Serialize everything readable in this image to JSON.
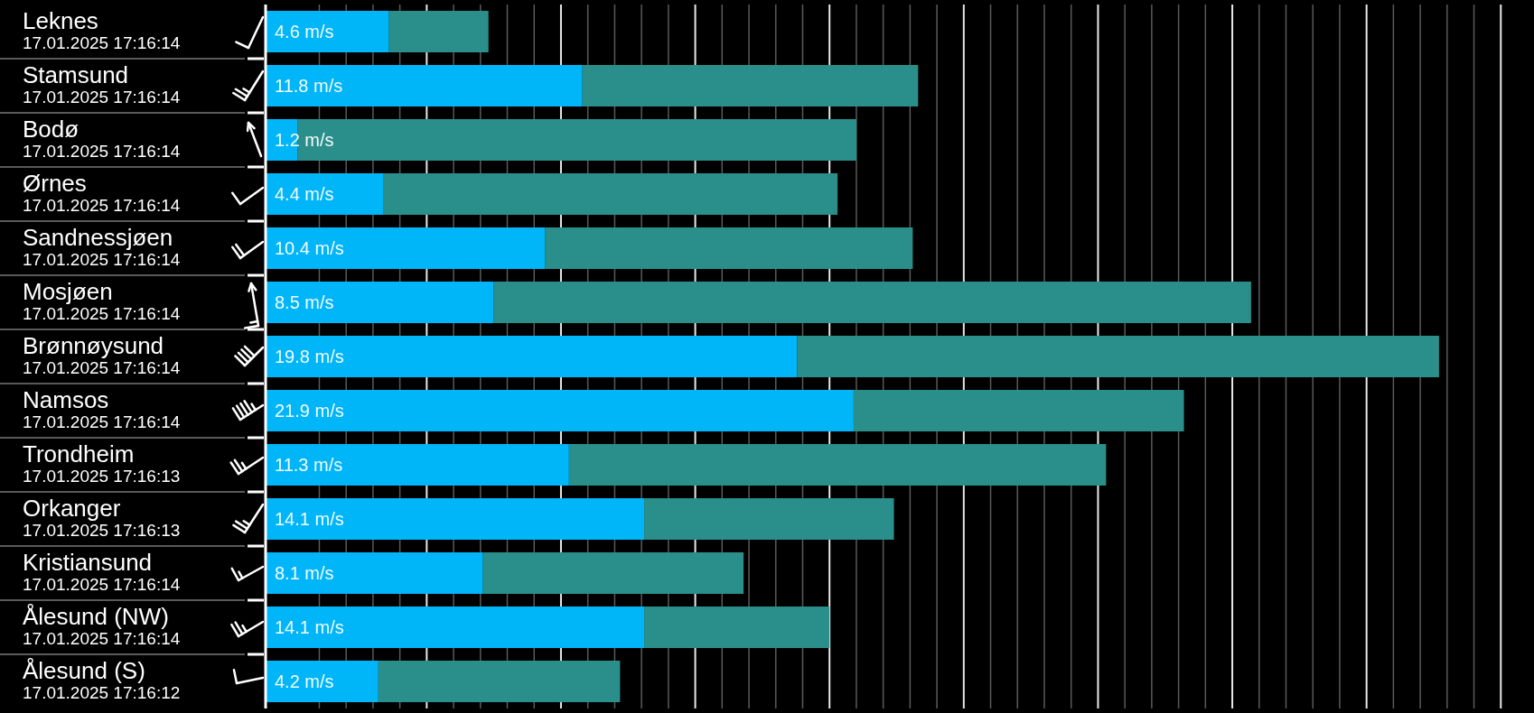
{
  "chart_data": {
    "type": "bar",
    "orientation": "horizontal",
    "stacked": true,
    "categories": [
      "Leknes\n17.01.2025 17:16:14",
      "Stamsund\n17.01.2025 17:16:14",
      "Bodø\n17.01.2025 17:16:14",
      "Ørnes\n17.01.2025 17:16:14",
      "Sandnessjøen\n17.01.2025 17:16:14",
      "Mosjøen\n17.01.2025 17:16:14",
      "Brønnøysund\n17.01.2025 17:16:14",
      "Namsos\n17.01.2025 17:16:14",
      "Trondheim\n17.01.2025 17:16:13",
      "Orkanger\n17.01.2025 17:16:13",
      "Kristiansund\n17.01.2025 17:16:14",
      "Ålesund (NW)\n17.01.2025 17:16:14",
      "Ålesund (S)\n17.01.2025 17:16:12"
    ],
    "series": [
      {
        "color": "#00b5f8",
        "values": [
          4.6,
          11.8,
          1.2,
          4.4,
          10.4,
          8.5,
          19.8,
          21.9,
          11.3,
          14.1,
          8.1,
          14.1,
          4.2
        ],
        "value_labels": [
          "4.6 m/s",
          "11.8 m/s",
          "1.2 m/s",
          "4.4 m/s",
          "10.4 m/s",
          "8.5 m/s",
          "19.8 m/s",
          "21.9 m/s",
          "11.3 m/s",
          "14.1 m/s",
          "8.1 m/s",
          "14.1 m/s",
          "4.2 m/s"
        ]
      },
      {
        "color": "#2a8f8b",
        "values": [
          3.7,
          12.5,
          20.8,
          16.9,
          13.7,
          28.2,
          23.9,
          12.3,
          20.0,
          9.3,
          9.7,
          6.9,
          9.0
        ]
      }
    ],
    "xlim": [
      0,
      47
    ],
    "xticks": [
      {
        "value": 2,
        "label": null
      },
      {
        "value": 3,
        "label": null
      },
      {
        "value": 4,
        "label": null
      },
      {
        "value": 5,
        "label": null
      },
      {
        "value": 6,
        "label": null
      },
      {
        "value": 7,
        "label": null
      },
      {
        "value": 8,
        "label": null
      },
      {
        "value": 9,
        "label": null
      },
      {
        "value": 10,
        "label": null
      },
      {
        "value": 11,
        "label": null
      },
      {
        "value": 12,
        "label": null
      },
      {
        "value": 13,
        "label": null
      },
      {
        "value": 14,
        "label": null
      },
      {
        "value": 15,
        "label": null
      },
      {
        "value": 16,
        "label": null
      },
      {
        "value": 17,
        "label": null
      },
      {
        "value": 18,
        "label": null
      },
      {
        "value": 19,
        "label": null
      },
      {
        "value": 20,
        "label": null
      },
      {
        "value": 21,
        "label": null
      },
      {
        "value": 22,
        "label": null
      },
      {
        "value": 23,
        "label": null
      },
      {
        "value": 24,
        "label": null
      },
      {
        "value": 25,
        "label": null
      },
      {
        "value": 26,
        "label": null
      },
      {
        "value": 27,
        "label": null
      },
      {
        "value": 28,
        "label": null
      },
      {
        "value": 29,
        "label": null
      },
      {
        "value": 30,
        "label": null
      },
      {
        "value": 31,
        "label": null
      },
      {
        "value": 32,
        "label": null
      },
      {
        "value": 33,
        "label": null
      },
      {
        "value": 34,
        "label": null
      },
      {
        "value": 35,
        "label": null
      },
      {
        "value": 36,
        "label": null
      },
      {
        "value": 37,
        "label": null
      },
      {
        "value": 38,
        "label": null
      },
      {
        "value": 39,
        "label": null
      },
      {
        "value": 40,
        "label": null
      },
      {
        "value": 41,
        "label": null
      },
      {
        "value": 42,
        "label": null
      },
      {
        "value": 43,
        "label": null
      },
      {
        "value": 44,
        "label": null
      },
      {
        "value": 45,
        "label": null
      },
      {
        "value": 46,
        "label": null
      }
    ],
    "grid": "x",
    "tick_labels": "y"
  }
}
